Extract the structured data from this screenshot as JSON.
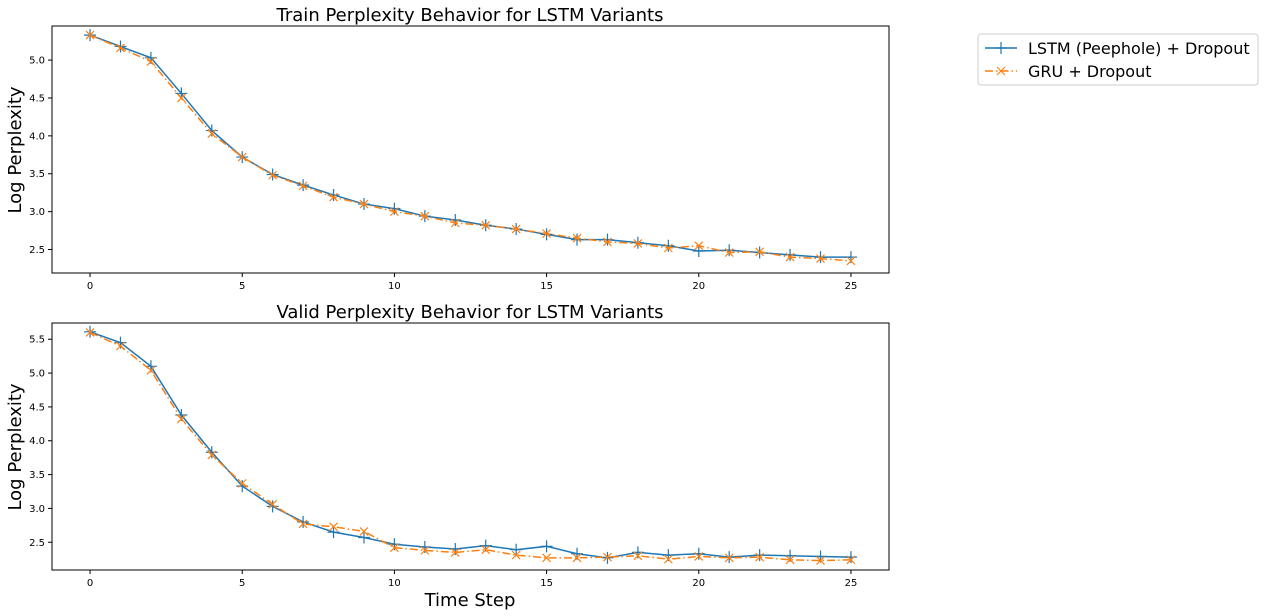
{
  "chart_data": [
    {
      "type": "line",
      "title": "Train Perplexity Behavior for LSTM Variants",
      "xlabel": "",
      "ylabel": "Log Perplexity",
      "xlim": [
        -1.25,
        26.25
      ],
      "ylim": [
        2.19,
        5.45
      ],
      "xticks": [
        0,
        5,
        10,
        15,
        20,
        25
      ],
      "yticks": [
        2.5,
        3.0,
        3.5,
        4.0,
        4.5,
        5.0
      ],
      "x": [
        0,
        1,
        2,
        3,
        4,
        5,
        6,
        7,
        8,
        9,
        10,
        11,
        12,
        13,
        14,
        15,
        16,
        17,
        18,
        19,
        20,
        21,
        22,
        23,
        24,
        25
      ],
      "series": [
        {
          "name": "LSTM (Peephole) + Dropout",
          "color": "#1f77b4",
          "marker": "+",
          "linestyle": "solid",
          "values": [
            5.33,
            5.18,
            5.03,
            4.56,
            4.07,
            3.72,
            3.49,
            3.35,
            3.22,
            3.1,
            3.04,
            2.94,
            2.89,
            2.82,
            2.77,
            2.7,
            2.63,
            2.63,
            2.59,
            2.55,
            2.48,
            2.49,
            2.46,
            2.43,
            2.4,
            2.4
          ]
        },
        {
          "name": "GRU + Dropout",
          "color": "#ff7f0e",
          "marker": "x",
          "linestyle": "dashdot",
          "values": [
            5.33,
            5.16,
            4.98,
            4.5,
            4.03,
            3.72,
            3.48,
            3.34,
            3.19,
            3.1,
            3.0,
            2.94,
            2.85,
            2.82,
            2.77,
            2.71,
            2.65,
            2.6,
            2.58,
            2.52,
            2.55,
            2.46,
            2.47,
            2.4,
            2.38,
            2.35
          ]
        }
      ],
      "grid": false
    },
    {
      "type": "line",
      "title": "Valid Perplexity Behavior for LSTM Variants",
      "xlabel": "Time Step",
      "ylabel": "Log Perplexity",
      "xlim": [
        -1.25,
        26.25
      ],
      "ylim": [
        2.09,
        5.74
      ],
      "xticks": [
        0,
        5,
        10,
        15,
        20,
        25
      ],
      "yticks": [
        2.5,
        3.0,
        3.5,
        4.0,
        4.5,
        5.0,
        5.5
      ],
      "x": [
        0,
        1,
        2,
        3,
        4,
        5,
        6,
        7,
        8,
        9,
        10,
        11,
        12,
        13,
        14,
        15,
        16,
        17,
        18,
        19,
        20,
        21,
        22,
        23,
        24,
        25
      ],
      "series": [
        {
          "name": "LSTM (Peephole) + Dropout",
          "color": "#1f77b4",
          "marker": "+",
          "linestyle": "solid",
          "values": [
            5.61,
            5.45,
            5.1,
            4.38,
            3.83,
            3.33,
            3.03,
            2.8,
            2.65,
            2.57,
            2.47,
            2.43,
            2.4,
            2.45,
            2.39,
            2.44,
            2.33,
            2.27,
            2.35,
            2.31,
            2.33,
            2.28,
            2.31,
            2.3,
            2.29,
            2.28
          ]
        },
        {
          "name": "GRU + Dropout",
          "color": "#ff7f0e",
          "marker": "x",
          "linestyle": "dashdot",
          "values": [
            5.6,
            5.4,
            5.04,
            4.32,
            3.79,
            3.37,
            3.06,
            2.77,
            2.73,
            2.66,
            2.42,
            2.38,
            2.35,
            2.39,
            2.31,
            2.27,
            2.27,
            2.28,
            2.3,
            2.25,
            2.29,
            2.27,
            2.28,
            2.24,
            2.23,
            2.24
          ]
        }
      ],
      "grid": false
    }
  ],
  "legend": {
    "placement": "outside-right",
    "entries": [
      "LSTM (Peephole) + Dropout",
      "GRU + Dropout"
    ]
  }
}
